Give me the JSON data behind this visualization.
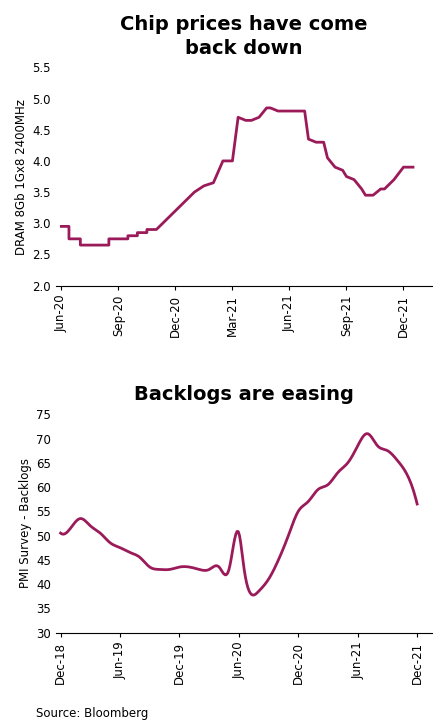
{
  "title1": "Chip prices have come\nback down",
  "ylabel1": "DRAM 8Gb 1Gx8 2400MHz",
  "ylim1": [
    2.0,
    5.5
  ],
  "yticks1": [
    2.0,
    2.5,
    3.0,
    3.5,
    4.0,
    4.5,
    5.0,
    5.5
  ],
  "xtick_labels1": [
    "Jun-20",
    "Sep-20",
    "Dec-20",
    "Mar-21",
    "Jun-21",
    "Sep-21",
    "Dec-21"
  ],
  "xtick_pos1": [
    0,
    3,
    6,
    9,
    12,
    15,
    18
  ],
  "dram_steps_x": [
    0.0,
    0.4,
    0.4,
    1.0,
    1.0,
    1.5,
    1.5,
    2.0,
    2.0,
    2.5,
    2.5,
    3.0,
    3.0,
    3.5,
    3.5,
    4.0,
    4.0,
    4.5,
    4.5,
    5.0,
    5.0,
    5.5,
    5.5,
    6.0,
    6.0,
    6.5,
    6.5,
    7.0,
    7.0,
    7.5,
    7.5,
    8.0,
    8.0,
    8.5,
    8.5,
    9.0,
    9.0,
    9.3,
    9.3,
    9.7,
    9.7,
    10.0,
    10.0,
    10.4,
    10.4,
    10.8,
    10.8,
    11.0,
    11.0,
    11.4,
    11.4,
    11.7,
    11.7,
    12.0,
    12.0,
    12.4,
    12.4,
    12.8,
    12.8,
    13.0,
    13.0,
    13.4,
    13.4,
    13.8,
    13.8,
    14.0,
    14.0,
    14.4,
    14.4,
    14.8,
    14.8,
    15.0,
    15.0,
    15.4,
    15.4,
    15.8,
    15.8,
    16.0,
    16.0,
    16.4,
    16.4,
    16.8,
    16.8,
    17.0,
    17.0,
    17.5,
    17.5,
    18.0,
    18.0,
    18.5
  ],
  "dram_steps_y": [
    2.95,
    2.95,
    2.75,
    2.75,
    2.65,
    2.65,
    2.65,
    2.65,
    2.65,
    2.65,
    2.75,
    2.75,
    2.75,
    2.75,
    2.8,
    2.8,
    2.85,
    2.85,
    2.9,
    2.9,
    2.9,
    3.05,
    3.05,
    3.2,
    3.2,
    3.35,
    3.35,
    3.5,
    3.5,
    3.6,
    3.6,
    3.65,
    3.65,
    4.0,
    4.0,
    4.0,
    4.0,
    4.7,
    4.7,
    4.65,
    4.65,
    4.65,
    4.65,
    4.7,
    4.7,
    4.85,
    4.85,
    4.85,
    4.85,
    4.8,
    4.8,
    4.8,
    4.8,
    4.8,
    4.8,
    4.8,
    4.8,
    4.8,
    4.8,
    4.35,
    4.35,
    4.3,
    4.3,
    4.3,
    4.3,
    4.05,
    4.05,
    3.9,
    3.9,
    3.85,
    3.85,
    3.75,
    3.75,
    3.7,
    3.7,
    3.55,
    3.55,
    3.45,
    3.45,
    3.45,
    3.45,
    3.55,
    3.55,
    3.55,
    3.55,
    3.7,
    3.7,
    3.9,
    3.9,
    3.9
  ],
  "title2": "Backlogs are easing",
  "ylabel2": "PMI Survey - Backlogs",
  "ylim2": [
    30,
    75
  ],
  "yticks2": [
    30,
    35,
    40,
    45,
    50,
    55,
    60,
    65,
    70,
    75
  ],
  "xtick_labels2": [
    "Dec-18",
    "Jun-19",
    "Dec-19",
    "Jun-20",
    "Dec-20",
    "Jun-21",
    "Dec-21"
  ],
  "xtick_pos2": [
    0,
    6,
    12,
    18,
    24,
    30,
    36
  ],
  "pmi_x": [
    0,
    1,
    2,
    3,
    4,
    5,
    6,
    7,
    8,
    9,
    10,
    11,
    12,
    13,
    14,
    15,
    16,
    17,
    18,
    18.5,
    19.2,
    20,
    21,
    22,
    23,
    24,
    25,
    26,
    27,
    28,
    29,
    30,
    31,
    32,
    33,
    34,
    35,
    36
  ],
  "pmi_y": [
    50.5,
    51.5,
    53.5,
    52.0,
    50.5,
    48.5,
    47.5,
    46.5,
    45.5,
    43.5,
    43.0,
    43.0,
    43.5,
    43.5,
    43.0,
    43.0,
    43.5,
    43.0,
    50.5,
    43.5,
    38.0,
    38.5,
    41.0,
    45.0,
    50.0,
    55.0,
    57.0,
    59.5,
    60.5,
    63.0,
    65.0,
    68.5,
    71.0,
    68.5,
    67.5,
    65.5,
    62.5,
    56.5
  ],
  "line_color": "#9B1B5A",
  "source_text": "Source: Bloomberg",
  "bg_color": "#FFFFFF"
}
